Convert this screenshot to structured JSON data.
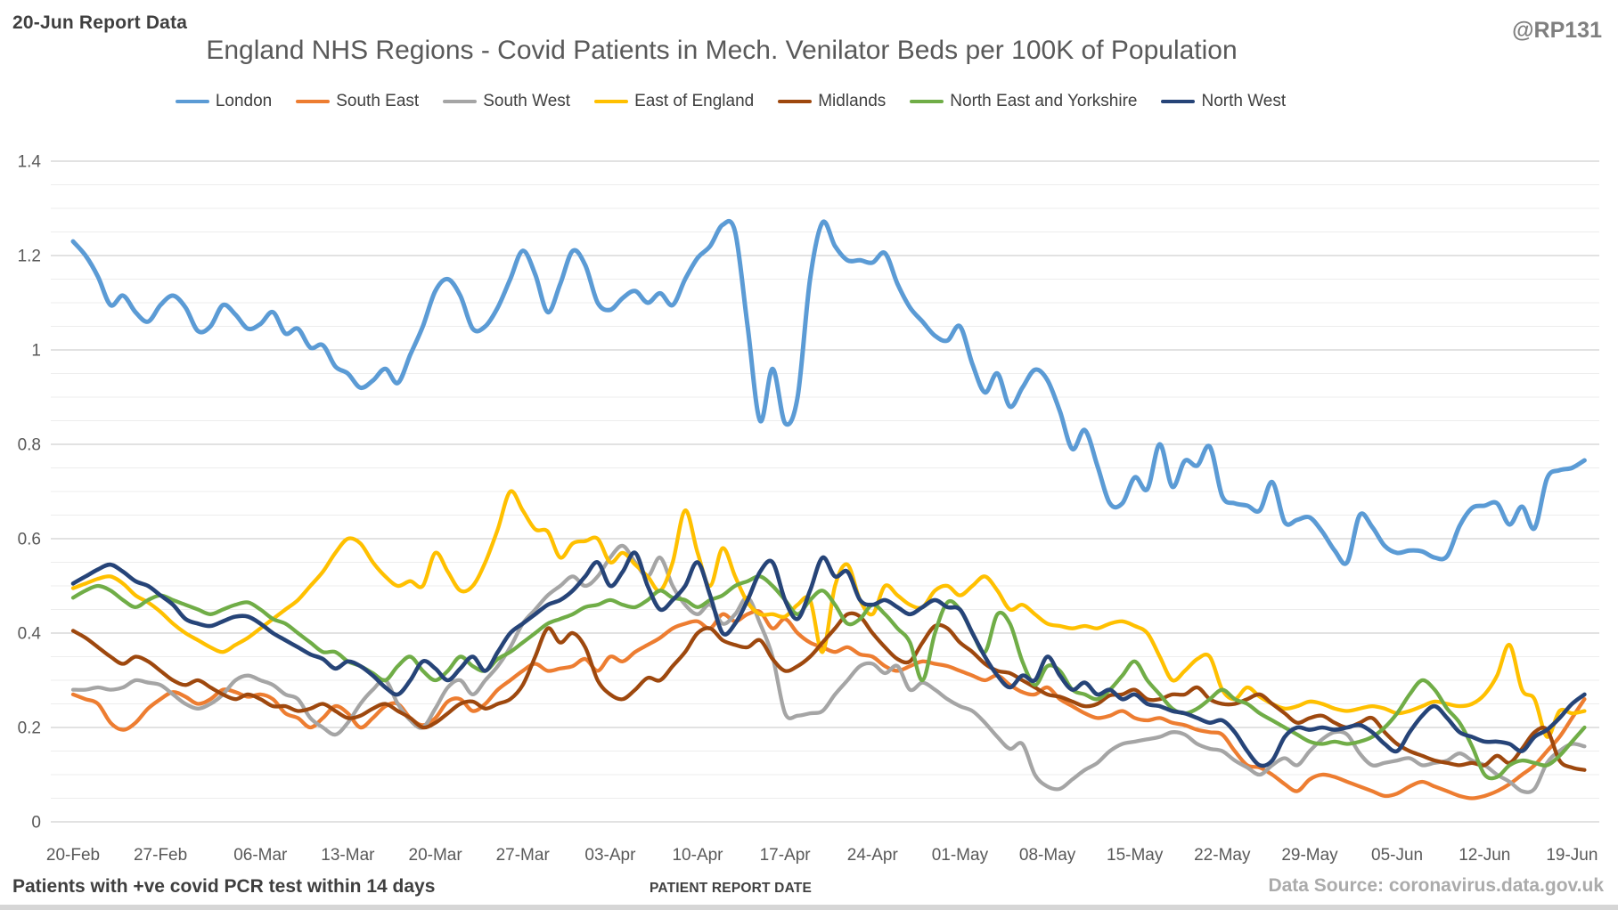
{
  "header": {
    "report_label": "20-Jun Report Data",
    "handle": "@RP131",
    "title": "England NHS Regions - Covid Patients in Mech. Venilator Beds per 100K of Population"
  },
  "footer": {
    "left_note": "Patients with +ve covid PCR test within 14 days",
    "xlabel": "PATIENT REPORT DATE",
    "source": "Data Source: coronavirus.data.gov.uk"
  },
  "chart_data": {
    "type": "line",
    "title": "England NHS Regions - Covid Patients in Mech. Venilator Beds per 100K of Population",
    "xlabel": "PATIENT REPORT DATE",
    "ylabel": "",
    "ylim": [
      0,
      1.4
    ],
    "grid": "horizontal, minor every 0.05, major every 0.2",
    "legend_position": "top",
    "x_unit": "daily patient report dates, 20-Feb to 20-Jun",
    "x_ticks": [
      {
        "label": "20-Feb",
        "day": 0
      },
      {
        "label": "27-Feb",
        "day": 7
      },
      {
        "label": "06-Mar",
        "day": 15
      },
      {
        "label": "13-Mar",
        "day": 22
      },
      {
        "label": "20-Mar",
        "day": 29
      },
      {
        "label": "27-Mar",
        "day": 36
      },
      {
        "label": "03-Apr",
        "day": 43
      },
      {
        "label": "10-Apr",
        "day": 50
      },
      {
        "label": "17-Apr",
        "day": 57
      },
      {
        "label": "24-Apr",
        "day": 64
      },
      {
        "label": "01-May",
        "day": 71
      },
      {
        "label": "08-May",
        "day": 78
      },
      {
        "label": "15-May",
        "day": 85
      },
      {
        "label": "22-May",
        "day": 92
      },
      {
        "label": "29-May",
        "day": 99
      },
      {
        "label": "05-Jun",
        "day": 106
      },
      {
        "label": "12-Jun",
        "day": 113
      },
      {
        "label": "19-Jun",
        "day": 120
      }
    ],
    "y_ticks": [
      {
        "label": "0",
        "value": 0
      },
      {
        "label": "0.2",
        "value": 0.2
      },
      {
        "label": "0.4",
        "value": 0.4
      },
      {
        "label": "0.6",
        "value": 0.6
      },
      {
        "label": "0.8",
        "value": 0.8
      },
      {
        "label": "1",
        "value": 1
      },
      {
        "label": "1.2",
        "value": 1.2
      },
      {
        "label": "1.4",
        "value": 1.4
      }
    ],
    "series": [
      {
        "name": "London",
        "color": "#5B9BD5",
        "width": 5,
        "values": [
          1.23,
          1.2,
          1.155,
          1.095,
          1.115,
          1.08,
          1.06,
          1.095,
          1.115,
          1.09,
          1.04,
          1.05,
          1.095,
          1.075,
          1.045,
          1.055,
          1.08,
          1.035,
          1.045,
          1.005,
          1.01,
          0.965,
          0.95,
          0.92,
          0.935,
          0.96,
          0.93,
          0.99,
          1.05,
          1.125,
          1.15,
          1.115,
          1.045,
          1.05,
          1.09,
          1.15,
          1.21,
          1.16,
          1.08,
          1.14,
          1.21,
          1.18,
          1.1,
          1.085,
          1.11,
          1.125,
          1.1,
          1.12,
          1.095,
          1.15,
          1.195,
          1.22,
          1.265,
          1.25,
          1.05,
          0.85,
          0.96,
          0.845,
          0.9,
          1.15,
          1.27,
          1.22,
          1.19,
          1.19,
          1.185,
          1.205,
          1.14,
          1.09,
          1.06,
          1.03,
          1.02,
          1.05,
          0.97,
          0.91,
          0.95,
          0.88,
          0.92,
          0.958,
          0.936,
          0.87,
          0.79,
          0.83,
          0.755,
          0.675,
          0.675,
          0.73,
          0.705,
          0.8,
          0.71,
          0.765,
          0.755,
          0.795,
          0.69,
          0.675,
          0.67,
          0.66,
          0.72,
          0.635,
          0.64,
          0.645,
          0.615,
          0.575,
          0.55,
          0.65,
          0.625,
          0.585,
          0.57,
          0.575,
          0.573,
          0.56,
          0.563,
          0.627,
          0.665,
          0.67,
          0.675,
          0.63,
          0.668,
          0.622,
          0.728,
          0.745,
          0.75,
          0.766
        ]
      },
      {
        "name": "South East",
        "color": "#ED7D31",
        "width": 4.3,
        "values": [
          0.27,
          0.26,
          0.25,
          0.21,
          0.195,
          0.21,
          0.24,
          0.26,
          0.275,
          0.265,
          0.25,
          0.26,
          0.28,
          0.275,
          0.265,
          0.27,
          0.26,
          0.23,
          0.22,
          0.2,
          0.22,
          0.245,
          0.23,
          0.2,
          0.22,
          0.245,
          0.25,
          0.22,
          0.205,
          0.22,
          0.255,
          0.26,
          0.235,
          0.25,
          0.28,
          0.3,
          0.32,
          0.335,
          0.32,
          0.325,
          0.33,
          0.345,
          0.32,
          0.35,
          0.34,
          0.36,
          0.375,
          0.39,
          0.41,
          0.42,
          0.425,
          0.41,
          0.44,
          0.425,
          0.44,
          0.445,
          0.41,
          0.43,
          0.4,
          0.38,
          0.37,
          0.36,
          0.37,
          0.355,
          0.35,
          0.33,
          0.32,
          0.33,
          0.34,
          0.335,
          0.33,
          0.32,
          0.31,
          0.3,
          0.31,
          0.29,
          0.275,
          0.27,
          0.285,
          0.26,
          0.245,
          0.23,
          0.22,
          0.225,
          0.235,
          0.22,
          0.215,
          0.22,
          0.21,
          0.205,
          0.195,
          0.19,
          0.185,
          0.15,
          0.12,
          0.115,
          0.1,
          0.08,
          0.065,
          0.09,
          0.1,
          0.095,
          0.085,
          0.075,
          0.065,
          0.055,
          0.06,
          0.075,
          0.085,
          0.075,
          0.065,
          0.055,
          0.05,
          0.055,
          0.065,
          0.08,
          0.1,
          0.12,
          0.15,
          0.18,
          0.22,
          0.26
        ]
      },
      {
        "name": "South West",
        "color": "#A5A5A5",
        "width": 4.3,
        "values": [
          0.28,
          0.28,
          0.285,
          0.28,
          0.285,
          0.3,
          0.295,
          0.29,
          0.27,
          0.25,
          0.24,
          0.25,
          0.27,
          0.3,
          0.31,
          0.3,
          0.29,
          0.27,
          0.26,
          0.22,
          0.2,
          0.185,
          0.21,
          0.25,
          0.28,
          0.3,
          0.25,
          0.215,
          0.2,
          0.24,
          0.285,
          0.3,
          0.27,
          0.3,
          0.33,
          0.37,
          0.42,
          0.45,
          0.48,
          0.5,
          0.52,
          0.5,
          0.52,
          0.56,
          0.585,
          0.55,
          0.52,
          0.56,
          0.5,
          0.46,
          0.44,
          0.46,
          0.42,
          0.44,
          0.475,
          0.42,
          0.35,
          0.23,
          0.225,
          0.23,
          0.235,
          0.27,
          0.3,
          0.33,
          0.335,
          0.315,
          0.33,
          0.28,
          0.295,
          0.28,
          0.26,
          0.245,
          0.235,
          0.21,
          0.18,
          0.155,
          0.165,
          0.1,
          0.075,
          0.07,
          0.09,
          0.11,
          0.125,
          0.15,
          0.165,
          0.17,
          0.175,
          0.18,
          0.19,
          0.185,
          0.165,
          0.155,
          0.15,
          0.13,
          0.115,
          0.1,
          0.12,
          0.135,
          0.12,
          0.15,
          0.175,
          0.19,
          0.185,
          0.145,
          0.12,
          0.125,
          0.13,
          0.135,
          0.12,
          0.125,
          0.13,
          0.145,
          0.13,
          0.12,
          0.1,
          0.085,
          0.065,
          0.07,
          0.125,
          0.15,
          0.165,
          0.16
        ]
      },
      {
        "name": "East of England",
        "color": "#FFC000",
        "width": 4.3,
        "values": [
          0.495,
          0.505,
          0.515,
          0.52,
          0.505,
          0.48,
          0.465,
          0.445,
          0.42,
          0.4,
          0.385,
          0.37,
          0.36,
          0.375,
          0.39,
          0.41,
          0.43,
          0.45,
          0.47,
          0.5,
          0.53,
          0.57,
          0.6,
          0.59,
          0.55,
          0.52,
          0.5,
          0.51,
          0.5,
          0.57,
          0.53,
          0.49,
          0.5,
          0.55,
          0.62,
          0.7,
          0.66,
          0.62,
          0.615,
          0.56,
          0.59,
          0.595,
          0.6,
          0.55,
          0.57,
          0.545,
          0.52,
          0.49,
          0.55,
          0.66,
          0.57,
          0.5,
          0.58,
          0.52,
          0.465,
          0.44,
          0.44,
          0.435,
          0.46,
          0.47,
          0.36,
          0.5,
          0.545,
          0.47,
          0.44,
          0.5,
          0.48,
          0.46,
          0.455,
          0.49,
          0.5,
          0.48,
          0.5,
          0.52,
          0.49,
          0.45,
          0.46,
          0.44,
          0.42,
          0.415,
          0.41,
          0.415,
          0.41,
          0.42,
          0.425,
          0.415,
          0.4,
          0.35,
          0.3,
          0.32,
          0.345,
          0.35,
          0.28,
          0.26,
          0.285,
          0.265,
          0.25,
          0.24,
          0.245,
          0.255,
          0.25,
          0.24,
          0.235,
          0.24,
          0.245,
          0.24,
          0.23,
          0.235,
          0.245,
          0.255,
          0.25,
          0.245,
          0.25,
          0.27,
          0.31,
          0.375,
          0.28,
          0.26,
          0.18,
          0.235,
          0.23,
          0.235
        ]
      },
      {
        "name": "Midlands",
        "color": "#9E480E",
        "width": 4.3,
        "values": [
          0.405,
          0.39,
          0.37,
          0.35,
          0.335,
          0.35,
          0.34,
          0.32,
          0.3,
          0.29,
          0.3,
          0.285,
          0.27,
          0.26,
          0.27,
          0.26,
          0.245,
          0.245,
          0.235,
          0.24,
          0.25,
          0.235,
          0.22,
          0.225,
          0.24,
          0.25,
          0.235,
          0.22,
          0.2,
          0.21,
          0.23,
          0.25,
          0.255,
          0.24,
          0.25,
          0.26,
          0.29,
          0.35,
          0.41,
          0.38,
          0.4,
          0.37,
          0.3,
          0.27,
          0.26,
          0.28,
          0.305,
          0.3,
          0.33,
          0.36,
          0.4,
          0.41,
          0.385,
          0.375,
          0.37,
          0.385,
          0.345,
          0.32,
          0.33,
          0.35,
          0.38,
          0.41,
          0.44,
          0.435,
          0.4,
          0.37,
          0.345,
          0.34,
          0.38,
          0.415,
          0.41,
          0.38,
          0.36,
          0.335,
          0.32,
          0.315,
          0.3,
          0.285,
          0.27,
          0.265,
          0.255,
          0.245,
          0.25,
          0.268,
          0.27,
          0.28,
          0.26,
          0.26,
          0.27,
          0.27,
          0.285,
          0.26,
          0.25,
          0.25,
          0.26,
          0.27,
          0.25,
          0.23,
          0.21,
          0.22,
          0.225,
          0.21,
          0.2,
          0.21,
          0.22,
          0.19,
          0.165,
          0.15,
          0.14,
          0.13,
          0.125,
          0.12,
          0.125,
          0.12,
          0.14,
          0.125,
          0.155,
          0.19,
          0.195,
          0.13,
          0.115,
          0.11
        ]
      },
      {
        "name": "North East and Yorkshire",
        "color": "#70AD47",
        "width": 4.3,
        "values": [
          0.475,
          0.49,
          0.5,
          0.49,
          0.47,
          0.455,
          0.47,
          0.48,
          0.47,
          0.46,
          0.45,
          0.44,
          0.45,
          0.46,
          0.465,
          0.45,
          0.43,
          0.42,
          0.4,
          0.38,
          0.36,
          0.36,
          0.34,
          0.33,
          0.315,
          0.3,
          0.33,
          0.35,
          0.32,
          0.3,
          0.32,
          0.35,
          0.33,
          0.32,
          0.345,
          0.36,
          0.38,
          0.4,
          0.42,
          0.43,
          0.44,
          0.455,
          0.46,
          0.47,
          0.46,
          0.455,
          0.47,
          0.49,
          0.475,
          0.47,
          0.455,
          0.47,
          0.48,
          0.5,
          0.51,
          0.52,
          0.5,
          0.47,
          0.44,
          0.47,
          0.49,
          0.46,
          0.42,
          0.43,
          0.46,
          0.44,
          0.41,
          0.38,
          0.3,
          0.4,
          0.465,
          0.45,
          0.4,
          0.36,
          0.44,
          0.42,
          0.34,
          0.29,
          0.33,
          0.32,
          0.28,
          0.27,
          0.26,
          0.28,
          0.31,
          0.34,
          0.3,
          0.27,
          0.24,
          0.23,
          0.24,
          0.26,
          0.28,
          0.26,
          0.25,
          0.23,
          0.215,
          0.2,
          0.185,
          0.17,
          0.165,
          0.17,
          0.165,
          0.17,
          0.18,
          0.2,
          0.23,
          0.27,
          0.3,
          0.28,
          0.24,
          0.21,
          0.16,
          0.1,
          0.095,
          0.12,
          0.13,
          0.125,
          0.12,
          0.14,
          0.17,
          0.2
        ]
      },
      {
        "name": "North West",
        "color": "#264478",
        "width": 4.6,
        "values": [
          0.505,
          0.52,
          0.535,
          0.545,
          0.53,
          0.51,
          0.5,
          0.48,
          0.46,
          0.43,
          0.42,
          0.415,
          0.425,
          0.435,
          0.435,
          0.42,
          0.4,
          0.385,
          0.37,
          0.355,
          0.345,
          0.325,
          0.34,
          0.33,
          0.31,
          0.285,
          0.27,
          0.3,
          0.34,
          0.325,
          0.3,
          0.325,
          0.35,
          0.32,
          0.36,
          0.4,
          0.42,
          0.44,
          0.46,
          0.47,
          0.49,
          0.52,
          0.55,
          0.5,
          0.53,
          0.57,
          0.5,
          0.45,
          0.47,
          0.5,
          0.55,
          0.48,
          0.4,
          0.42,
          0.47,
          0.53,
          0.55,
          0.47,
          0.43,
          0.49,
          0.56,
          0.52,
          0.53,
          0.47,
          0.46,
          0.47,
          0.455,
          0.44,
          0.455,
          0.47,
          0.455,
          0.45,
          0.4,
          0.35,
          0.31,
          0.285,
          0.31,
          0.3,
          0.35,
          0.31,
          0.28,
          0.295,
          0.27,
          0.28,
          0.26,
          0.27,
          0.25,
          0.245,
          0.235,
          0.23,
          0.22,
          0.21,
          0.215,
          0.19,
          0.15,
          0.12,
          0.13,
          0.18,
          0.2,
          0.195,
          0.2,
          0.195,
          0.2,
          0.205,
          0.19,
          0.165,
          0.15,
          0.19,
          0.225,
          0.245,
          0.22,
          0.19,
          0.18,
          0.17,
          0.17,
          0.165,
          0.15,
          0.18,
          0.195,
          0.22,
          0.25,
          0.27
        ]
      }
    ]
  }
}
